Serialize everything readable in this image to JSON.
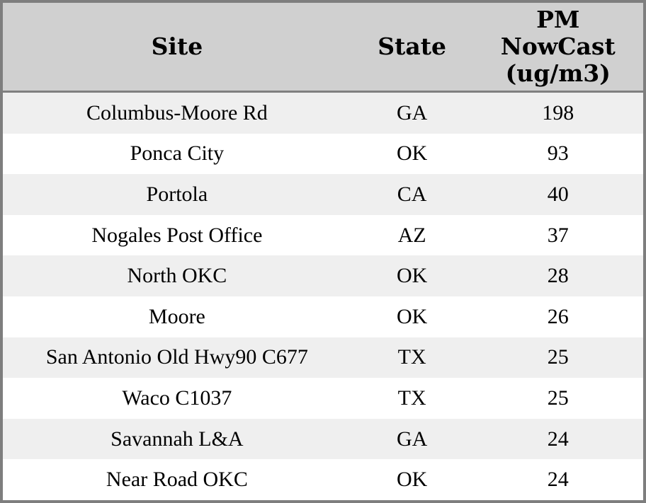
{
  "colors": {
    "frame_border": "#7e7e7e",
    "header_background": "#d0d0d0",
    "header_separator": "#808080",
    "stripe_row_background": "#efefef",
    "plain_row_background": "#ffffff",
    "text": "#000000"
  },
  "chart_data": {
    "type": "table",
    "title": "",
    "columns": [
      "Site",
      "State",
      "PM NowCast (ug/m3)"
    ],
    "header": {
      "site_label": "Site",
      "state_label": "State",
      "pm_label": "PM NowCast (ug/m3)",
      "pm_lines": [
        "PM",
        "NowCast",
        "(ug/m3)"
      ]
    },
    "rows": [
      {
        "site": "Columbus-Moore Rd",
        "state": "GA",
        "pm_nowcast": 198
      },
      {
        "site": "Ponca City",
        "state": "OK",
        "pm_nowcast": 93
      },
      {
        "site": "Portola",
        "state": "CA",
        "pm_nowcast": 40
      },
      {
        "site": "Nogales Post Office",
        "state": "AZ",
        "pm_nowcast": 37
      },
      {
        "site": "North OKC",
        "state": "OK",
        "pm_nowcast": 28
      },
      {
        "site": "Moore",
        "state": "OK",
        "pm_nowcast": 26
      },
      {
        "site": "San Antonio Old Hwy90 C677",
        "state": "TX",
        "pm_nowcast": 25
      },
      {
        "site": "Waco C1037",
        "state": "TX",
        "pm_nowcast": 25
      },
      {
        "site": "Savannah L&A",
        "state": "GA",
        "pm_nowcast": 24
      },
      {
        "site": "Near Road OKC",
        "state": "OK",
        "pm_nowcast": 24
      }
    ]
  }
}
